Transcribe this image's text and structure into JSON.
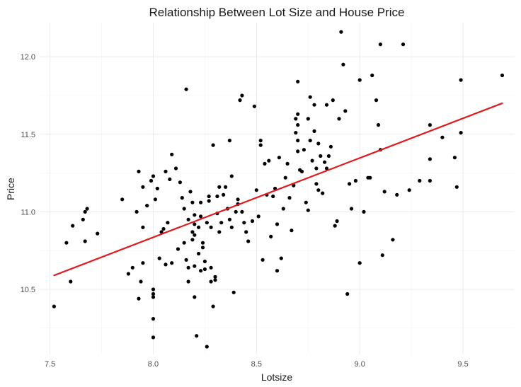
{
  "chart_data": {
    "type": "scatter",
    "title": "Relationship Between Lot Size and House Price",
    "xlabel": "Lotsize",
    "ylabel": "Price",
    "xlim": [
      7.45,
      9.75
    ],
    "ylim": [
      10.08,
      12.22
    ],
    "xticks": [
      7.5,
      8.0,
      8.5,
      9.0,
      9.5
    ],
    "xtick_labels": [
      "7.5",
      "8.0",
      "8.5",
      "9.0",
      "9.5"
    ],
    "yticks": [
      10.5,
      11.0,
      11.5,
      12.0
    ],
    "ytick_labels": [
      "10.5",
      "11.0",
      "11.5",
      "12.0"
    ],
    "grid": true,
    "point_color": "#000000",
    "line_color": "#e31a1c",
    "fit_line": {
      "x": [
        7.52,
        9.69
      ],
      "y": [
        10.59,
        11.7
      ]
    },
    "points": [
      [
        7.52,
        10.39
      ],
      [
        7.58,
        10.8
      ],
      [
        7.6,
        10.55
      ],
      [
        7.61,
        10.91
      ],
      [
        7.66,
        10.95
      ],
      [
        7.67,
        11.0
      ],
      [
        7.68,
        11.02
      ],
      [
        7.67,
        10.81
      ],
      [
        7.73,
        10.86
      ],
      [
        7.85,
        11.08
      ],
      [
        7.88,
        10.6
      ],
      [
        7.9,
        10.64
      ],
      [
        7.93,
        11.26
      ],
      [
        7.92,
        11.0
      ],
      [
        7.93,
        10.44
      ],
      [
        7.94,
        10.55
      ],
      [
        7.95,
        10.67
      ],
      [
        7.95,
        10.9
      ],
      [
        7.95,
        11.16
      ],
      [
        7.97,
        11.04
      ],
      [
        7.99,
        11.2
      ],
      [
        8.0,
        11.23
      ],
      [
        8.0,
        10.5
      ],
      [
        8.0,
        10.47
      ],
      [
        8.0,
        10.45
      ],
      [
        8.0,
        10.31
      ],
      [
        8.0,
        10.19
      ],
      [
        8.01,
        11.08
      ],
      [
        8.02,
        11.15
      ],
      [
        8.03,
        10.7
      ],
      [
        8.04,
        10.87
      ],
      [
        8.05,
        10.89
      ],
      [
        8.06,
        10.66
      ],
      [
        8.06,
        11.26
      ],
      [
        8.07,
        10.93
      ],
      [
        8.08,
        11.21
      ],
      [
        8.09,
        11.37
      ],
      [
        8.09,
        10.67
      ],
      [
        8.11,
        11.28
      ],
      [
        8.12,
        10.76
      ],
      [
        8.13,
        11.19
      ],
      [
        8.14,
        11.09
      ],
      [
        8.15,
        11.02
      ],
      [
        8.15,
        10.8
      ],
      [
        8.16,
        11.79
      ],
      [
        8.16,
        10.69
      ],
      [
        8.17,
        10.95
      ],
      [
        8.17,
        10.64
      ],
      [
        8.17,
        10.55
      ],
      [
        8.18,
        11.13
      ],
      [
        8.19,
        10.87
      ],
      [
        8.19,
        10.82
      ],
      [
        8.19,
        11.06
      ],
      [
        8.2,
        10.98
      ],
      [
        8.2,
        10.92
      ],
      [
        8.2,
        10.85
      ],
      [
        8.2,
        10.65
      ],
      [
        8.2,
        10.45
      ],
      [
        8.21,
        10.2
      ],
      [
        8.22,
        10.9
      ],
      [
        8.22,
        10.73
      ],
      [
        8.23,
        11.06
      ],
      [
        8.23,
        10.97
      ],
      [
        8.24,
        10.8
      ],
      [
        8.24,
        10.77
      ],
      [
        8.25,
        10.68
      ],
      [
        8.25,
        10.63
      ],
      [
        8.26,
        10.93
      ],
      [
        8.26,
        10.13
      ],
      [
        8.27,
        11.1
      ],
      [
        8.27,
        11.07
      ],
      [
        8.28,
        10.55
      ],
      [
        8.28,
        10.9
      ],
      [
        8.29,
        11.43
      ],
      [
        8.29,
        10.39
      ],
      [
        8.3,
        10.58
      ],
      [
        8.3,
        10.56
      ],
      [
        8.31,
        11.1
      ],
      [
        8.31,
        10.99
      ],
      [
        8.32,
        10.87
      ],
      [
        8.32,
        11.16
      ],
      [
        8.33,
        10.93
      ],
      [
        8.34,
        11.11
      ],
      [
        8.35,
        11.16
      ],
      [
        8.36,
        11.02
      ],
      [
        8.37,
        10.95
      ],
      [
        8.37,
        11.46
      ],
      [
        8.38,
        10.9
      ],
      [
        8.38,
        11.23
      ],
      [
        8.39,
        10.48
      ],
      [
        8.4,
        11.0
      ],
      [
        8.41,
        11.05
      ],
      [
        8.41,
        11.08
      ],
      [
        8.42,
        11.72
      ],
      [
        8.43,
        11.75
      ],
      [
        8.43,
        11.0
      ],
      [
        8.44,
        10.93
      ],
      [
        8.45,
        10.87
      ],
      [
        8.46,
        10.81
      ],
      [
        8.48,
        10.94
      ],
      [
        8.49,
        11.68
      ],
      [
        8.5,
        11.14
      ],
      [
        8.51,
        10.97
      ],
      [
        8.52,
        11.46
      ],
      [
        8.52,
        11.43
      ],
      [
        8.53,
        10.69
      ],
      [
        8.54,
        11.31
      ],
      [
        8.55,
        11.11
      ],
      [
        8.56,
        11.33
      ],
      [
        8.57,
        10.84
      ],
      [
        8.58,
        11.1
      ],
      [
        8.59,
        11.15
      ],
      [
        8.6,
        10.62
      ],
      [
        8.6,
        10.92
      ],
      [
        8.61,
        11.35
      ],
      [
        8.62,
        10.7
      ],
      [
        8.63,
        11.02
      ],
      [
        8.64,
        11.22
      ],
      [
        8.65,
        11.31
      ],
      [
        8.66,
        11.09
      ],
      [
        8.67,
        10.88
      ],
      [
        8.68,
        11.17
      ],
      [
        8.69,
        11.6
      ],
      [
        8.69,
        11.51
      ],
      [
        8.7,
        11.46
      ],
      [
        8.7,
        11.39
      ],
      [
        8.7,
        11.84
      ],
      [
        8.7,
        11.56
      ],
      [
        8.7,
        11.63
      ],
      [
        8.71,
        11.27
      ],
      [
        8.72,
        11.26
      ],
      [
        8.73,
        11.4
      ],
      [
        8.74,
        11.06
      ],
      [
        8.75,
        11.01
      ],
      [
        8.75,
        11.6
      ],
      [
        8.76,
        11.46
      ],
      [
        8.76,
        11.74
      ],
      [
        8.77,
        11.33
      ],
      [
        8.78,
        11.69
      ],
      [
        8.78,
        11.52
      ],
      [
        8.79,
        11.28
      ],
      [
        8.79,
        11.18
      ],
      [
        8.8,
        11.44
      ],
      [
        8.8,
        11.14
      ],
      [
        8.81,
        11.36
      ],
      [
        8.82,
        11.12
      ],
      [
        8.83,
        11.32
      ],
      [
        8.84,
        11.28
      ],
      [
        8.84,
        11.69
      ],
      [
        8.85,
        11.36
      ],
      [
        8.86,
        11.42
      ],
      [
        8.87,
        11.72
      ],
      [
        8.88,
        10.91
      ],
      [
        8.89,
        10.94
      ],
      [
        8.9,
        11.6
      ],
      [
        8.91,
        12.16
      ],
      [
        8.92,
        11.95
      ],
      [
        8.93,
        11.65
      ],
      [
        8.94,
        10.47
      ],
      [
        8.95,
        11.18
      ],
      [
        8.96,
        11.02
      ],
      [
        8.98,
        11.2
      ],
      [
        9.0,
        11.85
      ],
      [
        9.0,
        10.67
      ],
      [
        9.02,
        11.0
      ],
      [
        9.04,
        11.22
      ],
      [
        9.05,
        11.22
      ],
      [
        9.06,
        11.88
      ],
      [
        9.08,
        11.72
      ],
      [
        9.09,
        11.56
      ],
      [
        9.1,
        12.08
      ],
      [
        9.1,
        11.4
      ],
      [
        9.11,
        10.72
      ],
      [
        9.12,
        11.13
      ],
      [
        9.16,
        10.82
      ],
      [
        9.18,
        11.11
      ],
      [
        9.21,
        12.08
      ],
      [
        9.24,
        11.14
      ],
      [
        9.29,
        11.2
      ],
      [
        9.34,
        11.56
      ],
      [
        9.34,
        11.34
      ],
      [
        9.34,
        11.2
      ],
      [
        9.4,
        11.48
      ],
      [
        9.46,
        11.35
      ],
      [
        9.47,
        11.16
      ],
      [
        9.49,
        11.85
      ],
      [
        9.49,
        11.51
      ],
      [
        9.69,
        11.88
      ],
      [
        8.28,
        10.64
      ],
      [
        8.23,
        10.62
      ]
    ]
  }
}
